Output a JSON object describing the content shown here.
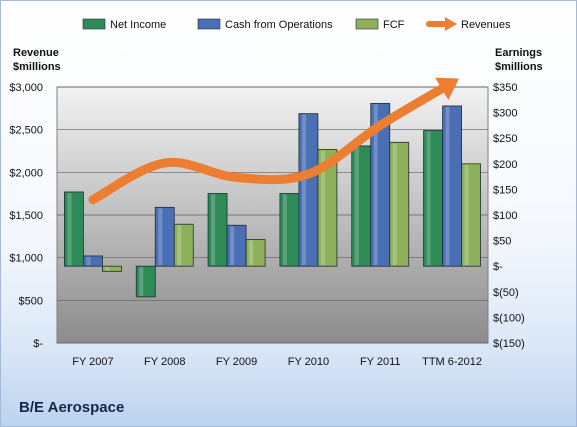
{
  "chart_data": {
    "type": "bar",
    "company": "B/E Aerospace",
    "categories": [
      "FY 2007",
      "FY 2008",
      "FY 2009",
      "FY 2010",
      "FY 2011",
      "TTM 6-2012"
    ],
    "series": [
      {
        "name": "Net Income",
        "axis": "right",
        "type": "bar",
        "color": "#2e8b57",
        "values": [
          145,
          -60,
          142,
          142,
          235,
          265
        ]
      },
      {
        "name": "Cash from Operations",
        "axis": "right",
        "type": "bar",
        "color": "#4a6fb5",
        "values": [
          20,
          115,
          80,
          298,
          318,
          313
        ]
      },
      {
        "name": "FCF",
        "axis": "right",
        "type": "bar",
        "color": "#8fb05a",
        "values": [
          -10,
          82,
          52,
          228,
          242,
          200
        ]
      },
      {
        "name": "Revenues",
        "axis": "left",
        "type": "line",
        "color": "#ed7d31",
        "values": [
          1680,
          2110,
          1940,
          1980,
          2550,
          3050
        ]
      }
    ],
    "left_axis": {
      "title_line1": "Revenue",
      "title_line2": "$millions",
      "ylim": [
        0,
        3000
      ],
      "ticks": [
        0,
        500,
        1000,
        1500,
        2000,
        2500,
        3000
      ],
      "tick_labels": [
        "$-",
        "$500",
        "$1,000",
        "$1,500",
        "$2,000",
        "$2,500",
        "$3,000"
      ]
    },
    "right_axis": {
      "title_line1": "Earnings",
      "title_line2": "$millions",
      "ylim": [
        -150,
        350
      ],
      "ticks": [
        -150,
        -100,
        -50,
        0,
        50,
        100,
        150,
        200,
        250,
        300,
        350
      ],
      "tick_labels": [
        "$(150)",
        "$(100)",
        "$(50)",
        "$-",
        "$50",
        "$100",
        "$150",
        "$200",
        "$250",
        "$300",
        "$350"
      ]
    },
    "legend": {
      "position": "top",
      "items": [
        "Net Income",
        "Cash from Operations",
        "FCF",
        "Revenues"
      ]
    },
    "grid": true
  }
}
